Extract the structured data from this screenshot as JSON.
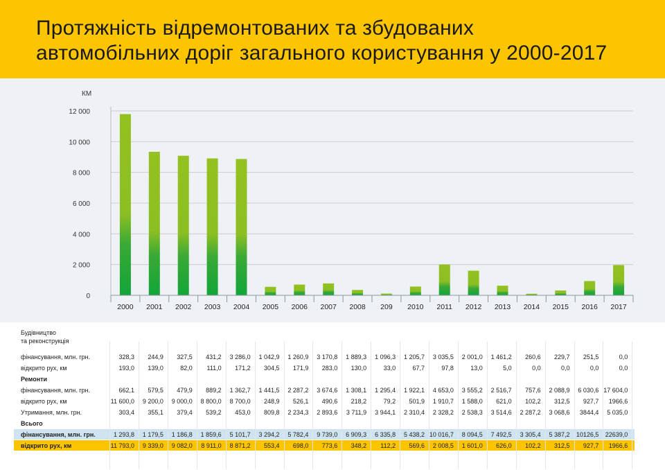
{
  "title": {
    "line1": "Протяжність відремонтованих та збудованих",
    "line2": "автомобільних доріг загального користування у 2000-2017"
  },
  "colors": {
    "header": "#fcc500",
    "bar_top": "#94c11f",
    "bar_bottom": "#12a53a",
    "total_row_blue": "#cfe4f0",
    "total_row_yellow": "#fcc500"
  },
  "chart_data": {
    "type": "bar",
    "ylabel": "КМ",
    "ylim": [
      0,
      12000
    ],
    "yticks": [
      0,
      2000,
      4000,
      6000,
      8000,
      10000,
      12000
    ],
    "ytick_labels": [
      "0",
      "2 000",
      "4 000",
      "6 000",
      "8 000",
      "10 000",
      "12 000"
    ],
    "categories": [
      "2000",
      "2001",
      "2002",
      "2003",
      "2004",
      "2005",
      "2006",
      "2007",
      "2008",
      "209",
      "2010",
      "2011",
      "2012",
      "2013",
      "2014",
      "2015",
      "2016",
      "2017"
    ],
    "values": [
      11793.0,
      9339.0,
      9082.0,
      8911.0,
      8871.2,
      553.4,
      698.0,
      773.6,
      348.2,
      112.2,
      569.6,
      2008.5,
      1601.0,
      626.0,
      102.2,
      312.5,
      927.7,
      1966.6
    ],
    "grid": true
  },
  "table": {
    "section_build": "Будівництво\nта реконструкція",
    "section_build_l1": "Будівництво",
    "section_build_l2": "та реконструкція",
    "section_repair": "Ремонти",
    "section_total": "Всього",
    "rows": [
      {
        "label": "фінансування, млн. грн.",
        "values": [
          "328,3",
          "244,9",
          "327,5",
          "431,2",
          "3 286,0",
          "1 042,9",
          "1 260,9",
          "3 170,8",
          "1 889,3",
          "1 096,3",
          "1 205,7",
          "3 035,5",
          "2 001,0",
          "1 461,2",
          "260,6",
          "229,7",
          "251,5",
          "0,0"
        ]
      },
      {
        "label": "відкрито рух, км",
        "values": [
          "193,0",
          "139,0",
          "82,0",
          "111,0",
          "171,2",
          "304,5",
          "171,9",
          "283,0",
          "130,0",
          "33,0",
          "67,7",
          "97,8",
          "13,0",
          "5,0",
          "0,0",
          "0,0",
          "0,0",
          "0,0"
        ]
      },
      {
        "label": "фінансування, млн. грн.",
        "values": [
          "662,1",
          "579,5",
          "479,9",
          "889,2",
          "1 362,7",
          "1 441,5",
          "2 287,2",
          "3 674,6",
          "1 308,1",
          "1 295,4",
          "1 922,1",
          "4 653,0",
          "3 555,2",
          "2 516,7",
          "757,6",
          "2 088,9",
          "6 030,6",
          "17 604,0"
        ]
      },
      {
        "label": "відкрито рух, км",
        "values": [
          "11 600,0",
          "9 200,0",
          "9 000,0",
          "8 800,0",
          "8 700,0",
          "248,9",
          "526,1",
          "490,6",
          "218,2",
          "79,2",
          "501,9",
          "1 910,7",
          "1 588,0",
          "621,0",
          "102,2",
          "312,5",
          "927,7",
          "1966,6"
        ]
      },
      {
        "label": "Утримання, млн. грн.",
        "values": [
          "303,4",
          "355,1",
          "379,4",
          "539,2",
          "453,0",
          "809,8",
          "2 234,3",
          "2 893,6",
          "3 711,9",
          "3 944,1",
          "2 310,4",
          "2 328,2",
          "2 538,3",
          "3 514,6",
          "2 287,2",
          "3 068,6",
          "3844,4",
          "5 035,0"
        ]
      },
      {
        "label": "фінансування, млн. грн.",
        "values": [
          "1 293,8",
          "1 179,5",
          "1 186,8",
          "1 859,6",
          "5 101,7",
          "3 294,2",
          "5 782,4",
          "9 739,0",
          "6 909,3",
          "6 335,8",
          "5 438,2",
          "10 016,7",
          "8 094,5",
          "7 492,5",
          "3 305,4",
          "5 387,2",
          "10126,5",
          "22639,0"
        ]
      },
      {
        "label": "відкрито рух, км",
        "values": [
          "11 793,0",
          "9 339,0",
          "9 082,0",
          "8 911,0",
          "8 871,2",
          "553,4",
          "698,0",
          "773,6",
          "348,2",
          "112,2",
          "569,6",
          "2 008,5",
          "1 601,0",
          "626,0",
          "102,2",
          "312,5",
          "927,7",
          "1966,6"
        ]
      }
    ]
  }
}
